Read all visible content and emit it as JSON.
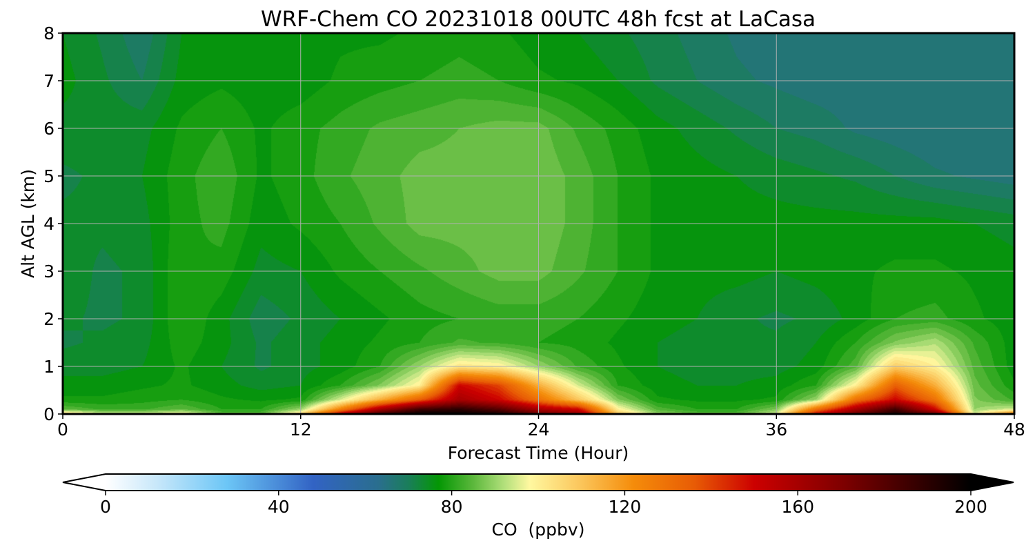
{
  "chart_data": {
    "type": "heatmap",
    "title": "WRF-Chem CO  20231018 00UTC 48h fcst at LaCasa",
    "xlabel": "Forecast Time (Hour)",
    "ylabel": "Alt AGL (km)",
    "xlim": [
      0,
      48
    ],
    "ylim": [
      0,
      8
    ],
    "xticks": [
      0,
      12,
      24,
      36,
      48
    ],
    "yticks": [
      0,
      1,
      2,
      3,
      4,
      5,
      6,
      7,
      8
    ],
    "grid": true,
    "colorbar": {
      "label": "CO  (ppbv)",
      "range": [
        0,
        200
      ],
      "ticks": [
        0,
        40,
        80,
        120,
        160,
        200
      ],
      "extend": "both",
      "orientation": "horizontal",
      "stops": [
        {
          "value": 0,
          "color": "#ffffff"
        },
        {
          "value": 12,
          "color": "#c7e7fa"
        },
        {
          "value": 28,
          "color": "#6cc6f6"
        },
        {
          "value": 48,
          "color": "#3263c4"
        },
        {
          "value": 63,
          "color": "#2a6e8e"
        },
        {
          "value": 70,
          "color": "#1a7e5a"
        },
        {
          "value": 77,
          "color": "#049704"
        },
        {
          "value": 85,
          "color": "#5cb83c"
        },
        {
          "value": 92,
          "color": "#b0df7a"
        },
        {
          "value": 98,
          "color": "#fff8a0"
        },
        {
          "value": 110,
          "color": "#fbc55a"
        },
        {
          "value": 122,
          "color": "#f58c0a"
        },
        {
          "value": 136,
          "color": "#e85c05"
        },
        {
          "value": 150,
          "color": "#cc0000"
        },
        {
          "value": 170,
          "color": "#800000"
        },
        {
          "value": 200,
          "color": "#000000"
        }
      ]
    },
    "field": {
      "x": [
        0,
        2,
        4,
        6,
        8,
        10,
        12,
        14,
        16,
        18,
        20,
        22,
        24,
        26,
        28,
        30,
        32,
        34,
        36,
        38,
        40,
        42,
        44,
        46,
        48
      ],
      "y": [
        0,
        0.1,
        0.3,
        0.6,
        1.0,
        1.5,
        2.0,
        3.0,
        4.0,
        5.0,
        6.0,
        7.0,
        8.0
      ],
      "values": [
        [
          108,
          95,
          95,
          100,
          85,
          85,
          105,
          155,
          185,
          200,
          200,
          195,
          175,
          165,
          110,
          90,
          85,
          85,
          95,
          150,
          175,
          195,
          175,
          95,
          130
        ],
        [
          85,
          82,
          82,
          85,
          80,
          80,
          90,
          125,
          160,
          185,
          190,
          180,
          160,
          150,
          100,
          84,
          80,
          80,
          88,
          130,
          160,
          185,
          150,
          90,
          95
        ],
        [
          78,
          78,
          79,
          80,
          78,
          77,
          78,
          95,
          115,
          135,
          160,
          150,
          130,
          110,
          88,
          78,
          77,
          77,
          78,
          90,
          130,
          150,
          130,
          88,
          82
        ],
        [
          76,
          76,
          77,
          78,
          76,
          74,
          75,
          80,
          88,
          100,
          150,
          140,
          115,
          95,
          80,
          76,
          75,
          75,
          76,
          80,
          100,
          135,
          115,
          86,
          78
        ],
        [
          74,
          74,
          75,
          78,
          75,
          72,
          74,
          76,
          80,
          90,
          102,
          100,
          90,
          82,
          78,
          75,
          74,
          74,
          74,
          76,
          84,
          108,
          100,
          84,
          76
        ],
        [
          72,
          73,
          74,
          79,
          76,
          72,
          74,
          76,
          78,
          80,
          83,
          82,
          80,
          79,
          77,
          75,
          74,
          73,
          73,
          75,
          80,
          88,
          92,
          82,
          76
        ],
        [
          73,
          72,
          73,
          80,
          76,
          71,
          73,
          75,
          77,
          79,
          80,
          81,
          81,
          80,
          78,
          76,
          75,
          73,
          72,
          73,
          76,
          80,
          81,
          78,
          76
        ],
        [
          74,
          72,
          73,
          80,
          79,
          74,
          75,
          78,
          80,
          82,
          84,
          86,
          86,
          83,
          80,
          77,
          76,
          76,
          75,
          76,
          77,
          78,
          78,
          77,
          76
        ],
        [
          73,
          73,
          74,
          79,
          81,
          76,
          78,
          80,
          83,
          86,
          86,
          86,
          87,
          84,
          80,
          77,
          77,
          76,
          76,
          76,
          76,
          76,
          76,
          75,
          74
        ],
        [
          72,
          73,
          75,
          79,
          82,
          77,
          79,
          82,
          84,
          86,
          86,
          87,
          87,
          84,
          80,
          77,
          76,
          75,
          74,
          73,
          72,
          70,
          68,
          67,
          66
        ],
        [
          74,
          74,
          74,
          78,
          80,
          77,
          79,
          81,
          83,
          84,
          85,
          86,
          86,
          82,
          79,
          76,
          74,
          72,
          70,
          69,
          67,
          66,
          65,
          65,
          65
        ],
        [
          76,
          73,
          70,
          76,
          77,
          76,
          76,
          78,
          79,
          80,
          81,
          80,
          78,
          77,
          75,
          72,
          70,
          68,
          67,
          66,
          66,
          65,
          65,
          65,
          65
        ],
        [
          75,
          72,
          68,
          75,
          76,
          75,
          76,
          77,
          77,
          78,
          79,
          78,
          76,
          75,
          73,
          71,
          69,
          67,
          66,
          66,
          65,
          65,
          65,
          65,
          65
        ]
      ]
    }
  }
}
